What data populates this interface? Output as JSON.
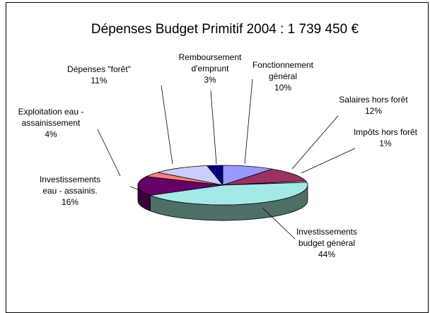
{
  "chart_data": {
    "type": "pie",
    "title": "Dépenses Budget Primitif 2004 : 1 739 450 €",
    "slices": [
      {
        "label_lines": [
          "Fonctionnement",
          "général"
        ],
        "percent_label": "10%",
        "value": 10,
        "color": "#9999FF",
        "side": "#5B5BA8"
      },
      {
        "label_lines": [
          "Salaires  hors forêt"
        ],
        "percent_label": "12%",
        "value": 12,
        "color": "#993366",
        "side": "#5E1F3E"
      },
      {
        "label_lines": [
          "Impôts  hors forêt"
        ],
        "percent_label": "1%",
        "value": 1,
        "color": "#FFFFCC",
        "side": "#A8A880"
      },
      {
        "label_lines": [
          "Investissements",
          "budget général"
        ],
        "percent_label": "44%",
        "value": 44,
        "color": "#A6E8E8",
        "side": "#4F6E6A"
      },
      {
        "label_lines": [
          "Investissements",
          "eau - assainis."
        ],
        "percent_label": "16%",
        "value": 16,
        "color": "#660066",
        "side": "#3A003A"
      },
      {
        "label_lines": [
          "Exploitation eau -",
          "assainissement"
        ],
        "percent_label": "4%",
        "value": 4,
        "color": "#FF8080",
        "side": "#A84F4F"
      },
      {
        "label_lines": [
          "Dépenses    \"forêt\""
        ],
        "percent_label": "11%",
        "value": 11,
        "color": "#CCCCFF",
        "side": "#8484A8"
      },
      {
        "label_lines": [
          "Remboursement",
          "d'emprunt"
        ],
        "percent_label": "3%",
        "value": 3,
        "color": "#000080",
        "side": "#00004A"
      }
    ]
  }
}
